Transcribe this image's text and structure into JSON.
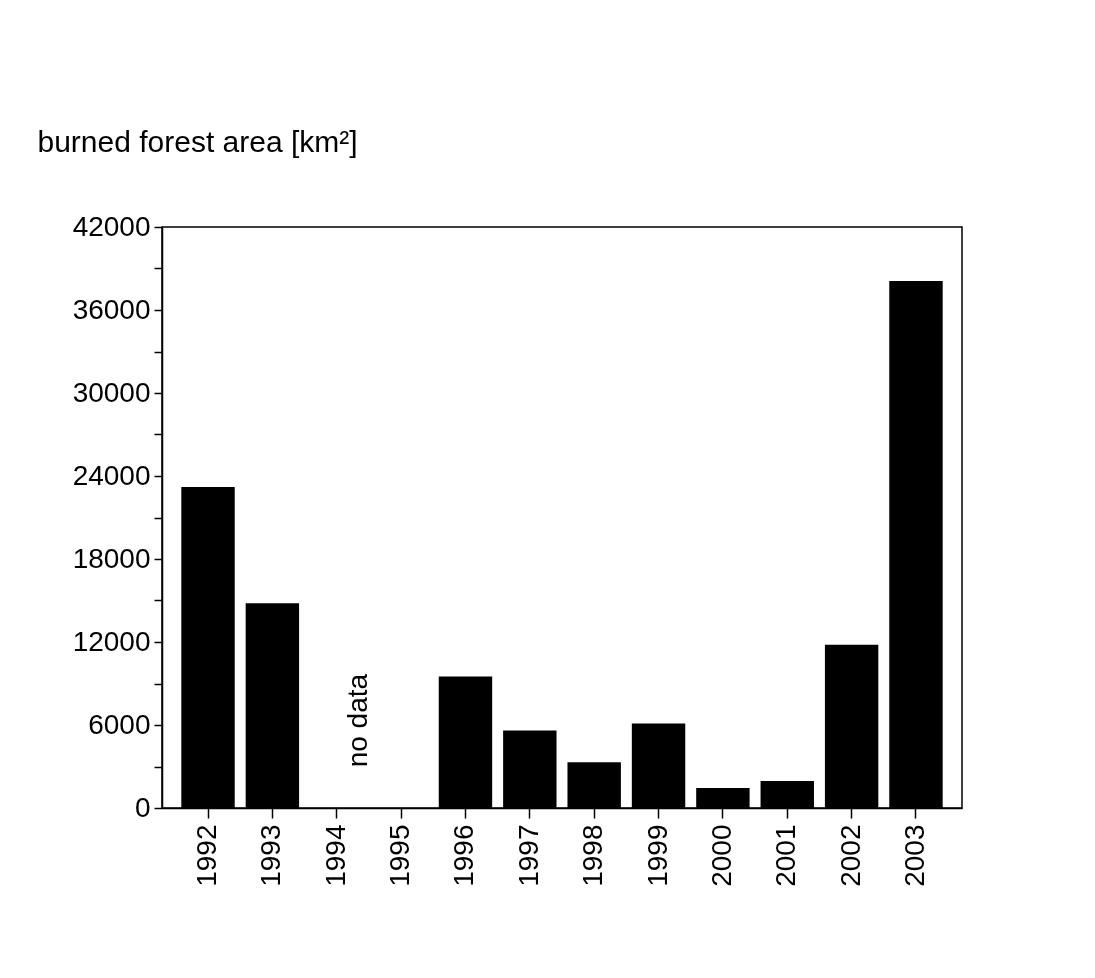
{
  "chart_data": {
    "type": "bar",
    "ylabel": "burned forest area [km²]",
    "categories": [
      "1992",
      "1993",
      "1994",
      "1995",
      "1996",
      "1997",
      "1998",
      "1999",
      "2000",
      "2001",
      "2002",
      "2003"
    ],
    "values": [
      23200,
      14800,
      null,
      null,
      9500,
      5600,
      3300,
      6100,
      1450,
      1950,
      11800,
      38100
    ],
    "color": "#000000",
    "ylim": [
      0,
      42000
    ],
    "yticks": [
      0,
      {
        "value": 3000,
        "label": null
      },
      6000,
      {
        "value": 9000,
        "label": null
      },
      12000,
      {
        "value": 15000,
        "label": null
      },
      18000,
      {
        "value": 21000,
        "label": null
      },
      24000,
      {
        "value": 27000,
        "label": null
      },
      30000,
      {
        "value": 33000,
        "label": null
      },
      36000,
      {
        "value": 39000,
        "label": null
      },
      42000
    ],
    "grid": false,
    "annotations": [
      "no data"
    ]
  }
}
